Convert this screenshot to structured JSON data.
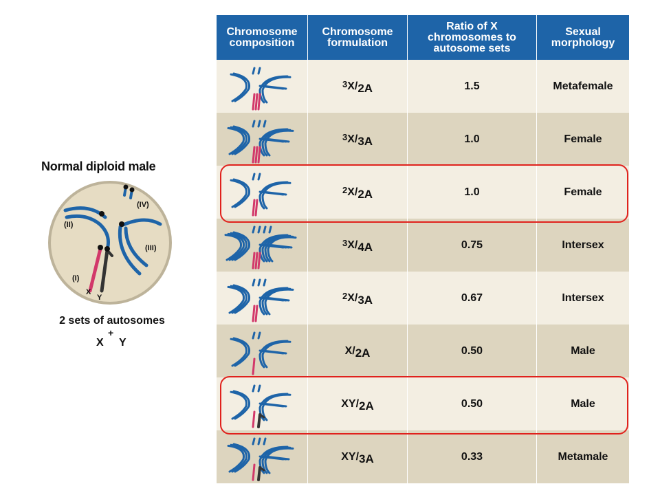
{
  "left_panel": {
    "title": "Normal diploid male",
    "chromosome_labels": {
      "i": "(I)",
      "ii": "(II)",
      "iii": "(III)",
      "iv": "(IV)",
      "x": "X",
      "y": "Y"
    },
    "autosome_caption": "2 sets of autosomes",
    "sex_caption": {
      "x": "X",
      "plus": "+",
      "y": "Y"
    }
  },
  "table": {
    "headers": [
      "Chromosome composition",
      "Chromosome formulation",
      "Ratio of X chromosomes to autosome sets",
      "Sexual morphology"
    ],
    "rows": [
      {
        "formula_x": "3",
        "formula_main": "X/",
        "formula_auto": "2A",
        "ratio": "1.5",
        "morphology": "Metafemale",
        "highlight": false,
        "sex": "XXX",
        "autosome_sets": 2
      },
      {
        "formula_x": "3",
        "formula_main": "X/",
        "formula_auto": "3A",
        "ratio": "1.0",
        "morphology": "Female",
        "highlight": false,
        "sex": "XXX",
        "autosome_sets": 3
      },
      {
        "formula_x": "2",
        "formula_main": "X/",
        "formula_auto": "2A",
        "ratio": "1.0",
        "morphology": "Female",
        "highlight": true,
        "sex": "XX",
        "autosome_sets": 2
      },
      {
        "formula_x": "3",
        "formula_main": "X/",
        "formula_auto": "4A",
        "ratio": "0.75",
        "morphology": "Intersex",
        "highlight": false,
        "sex": "XXX",
        "autosome_sets": 4
      },
      {
        "formula_x": "2",
        "formula_main": "X/",
        "formula_auto": "3A",
        "ratio": "0.67",
        "morphology": "Intersex",
        "highlight": false,
        "sex": "XX",
        "autosome_sets": 3
      },
      {
        "formula_x": "",
        "formula_main": "X/",
        "formula_auto": "2A",
        "ratio": "0.50",
        "morphology": "Male",
        "highlight": false,
        "sex": "X",
        "autosome_sets": 2
      },
      {
        "formula_x": "",
        "formula_main": "XY/",
        "formula_auto": "2A",
        "ratio": "0.50",
        "morphology": "Male",
        "highlight": true,
        "sex": "XY",
        "autosome_sets": 2
      },
      {
        "formula_x": "",
        "formula_main": "XY/",
        "formula_auto": "3A",
        "ratio": "0.33",
        "morphology": "Metamale",
        "highlight": false,
        "sex": "XY",
        "autosome_sets": 3
      }
    ]
  },
  "colors": {
    "header_bg": "#1e64a8",
    "row_light": "#f3eee2",
    "row_dark": "#ddd5bf",
    "autosome_blue": "#1e64a8",
    "x_pink": "#d2386a",
    "y_black": "#333333",
    "highlight_red": "#e0211c",
    "cell_fill": "#e6dcc3"
  }
}
